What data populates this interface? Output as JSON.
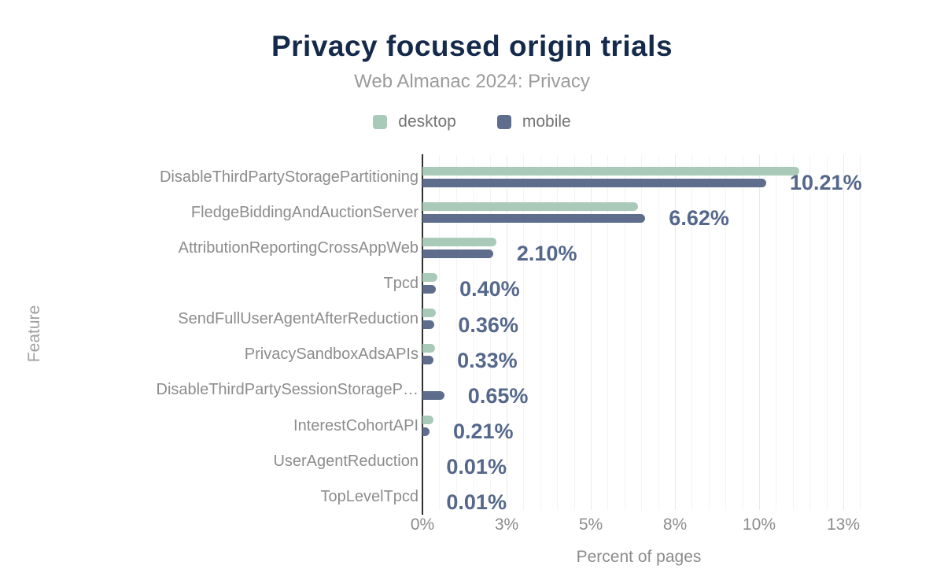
{
  "header": {
    "title": "Privacy focused origin trials",
    "subtitle": "Web Almanac 2024: Privacy"
  },
  "chart_data": {
    "type": "bar",
    "orientation": "horizontal",
    "title": "Privacy focused origin trials",
    "subtitle": "Web Almanac 2024: Privacy",
    "xlabel": "Percent of pages",
    "ylabel": "Feature",
    "legend_position": "top",
    "grid": true,
    "categories": [
      "DisableThirdPartyStoragePartitioning",
      "FledgeBiddingAndAuctionServer",
      "AttributionReportingCrossAppWeb",
      "Tpcd",
      "SendFullUserAgentAfterReduction",
      "PrivacySandboxAdsAPIs",
      "DisableThirdPartySessionStorageP…",
      "InterestCohortAPI",
      "UserAgentReduction",
      "TopLevelTpcd"
    ],
    "series": [
      {
        "name": "desktop",
        "color": "#a9cab8",
        "values": [
          11.2,
          6.4,
          2.2,
          0.45,
          0.4,
          0.38,
          0,
          0.32,
          0.01,
          0.01
        ]
      },
      {
        "name": "mobile",
        "color": "#5e6d8c",
        "values": [
          10.21,
          6.62,
          2.1,
          0.4,
          0.36,
          0.33,
          0.65,
          0.21,
          0.01,
          0.01
        ]
      }
    ],
    "annotations": [
      "10.21%",
      "6.62%",
      "2.10%",
      "0.40%",
      "0.36%",
      "0.33%",
      "0.65%",
      "0.21%",
      "0.01%",
      "0.01%"
    ],
    "annotation_series": "mobile",
    "x_ticks": {
      "labels": [
        "0%",
        "3%",
        "5%",
        "8%",
        "10%",
        "13%"
      ],
      "values": [
        0,
        2.5,
        5,
        7.5,
        10,
        12.5
      ]
    },
    "xlim": [
      0,
      13.25
    ],
    "minor_grid_step": 0.5
  },
  "colors": {
    "title": "#152a4a",
    "subtitle": "#9b9b9b",
    "desktop": "#a9cab8",
    "mobile": "#5e6d8c",
    "value_label": "#55688b",
    "axis_line": "#2e2e2e",
    "grid_minor": "#f4f4f4",
    "grid_major": "#e9e9e9"
  }
}
